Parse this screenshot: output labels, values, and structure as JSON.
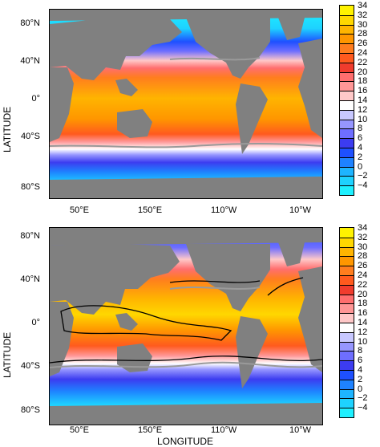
{
  "axes": {
    "y_title": "LATITUDE",
    "x_title": "LONGITUDE",
    "lat_ticks": [
      "80°N",
      "40°N",
      "0°",
      "40°S",
      "80°S"
    ],
    "lon_ticks": [
      "50°E",
      "150°E",
      "110°W",
      "10°W"
    ]
  },
  "colorbar": {
    "labels": [
      "34",
      "32",
      "30",
      "28",
      "26",
      "24",
      "22",
      "20",
      "18",
      "16",
      "14",
      "12",
      "10",
      "8",
      "6",
      "4",
      "2",
      "0",
      "−2",
      "−4"
    ],
    "colors": [
      "#fff200",
      "#ffd700",
      "#ffb400",
      "#ff9600",
      "#ff7d1e",
      "#ff5a1e",
      "#f03c2d",
      "#ff6e6e",
      "#ff9696",
      "#ffc8c8",
      "#ffffff",
      "#c8c8ff",
      "#9696ff",
      "#6e6eff",
      "#3c3cf0",
      "#1e50ff",
      "#1e82ff",
      "#1eb4ff",
      "#1ed2ff",
      "#1ef0ff"
    ]
  },
  "panels": [
    {
      "name": "top",
      "contours": false
    },
    {
      "name": "bottom",
      "contours": true
    }
  ],
  "colors": {
    "land": "#808080",
    "contour_gray": "#9a9a9a",
    "contour_black": "#000000"
  }
}
